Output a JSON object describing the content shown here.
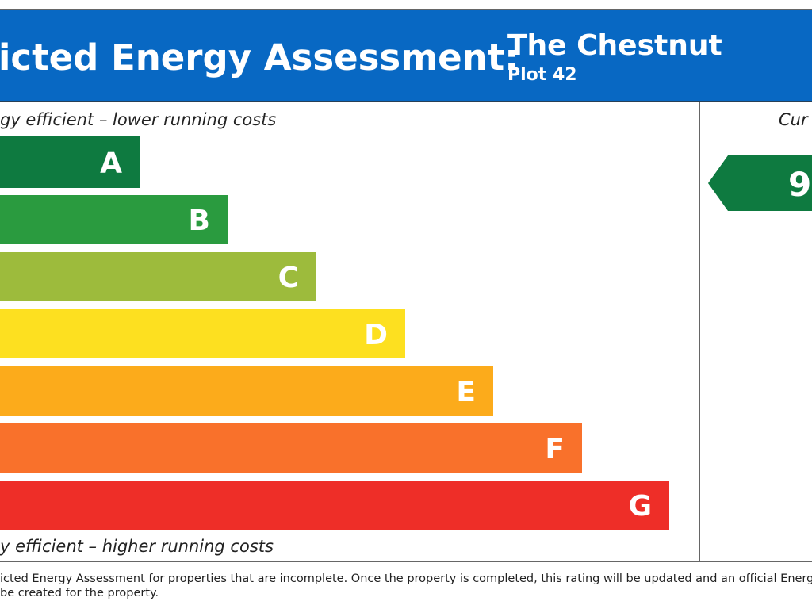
{
  "header": {
    "title": "icted Energy Assessment:",
    "property": "The Chestnut",
    "plot": "Plot 42"
  },
  "scale": {
    "top_caption": "gy efficient – lower running costs",
    "bottom_caption": "y efficient – higher running costs",
    "bands": [
      {
        "letter": "A",
        "color": "#0e7a40"
      },
      {
        "letter": "B",
        "color": "#2a9b3f"
      },
      {
        "letter": "C",
        "color": "#9dbb3c"
      },
      {
        "letter": "D",
        "color": "#fde020"
      },
      {
        "letter": "E",
        "color": "#fcab1b"
      },
      {
        "letter": "F",
        "color": "#f9712b"
      },
      {
        "letter": "G",
        "color": "#ee2e28"
      }
    ]
  },
  "current": {
    "heading": "Cur",
    "rating": "9",
    "color": "#0e7a40"
  },
  "footer": {
    "lines": [
      "icted Energy Assessment for properties that are incomplete. Once the property is completed, this rating will be updated and an official Energy",
      "be created for the property."
    ]
  }
}
